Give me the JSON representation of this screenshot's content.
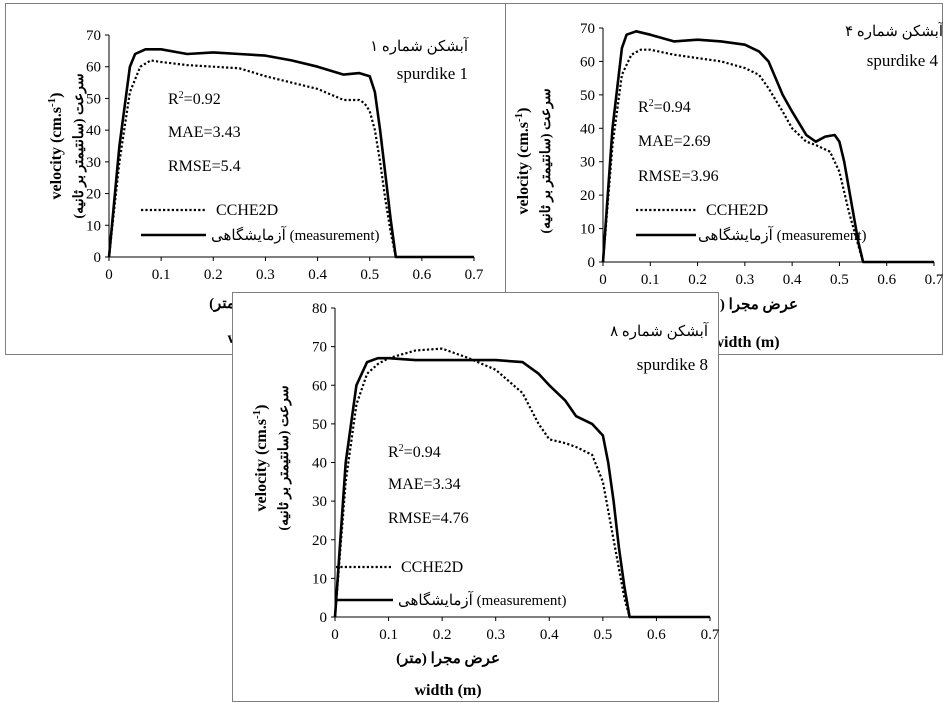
{
  "chart_data": [
    {
      "type": "line",
      "title_fa": "آبشکن شماره ۱",
      "title_en": "spurdike 1",
      "ylabel_en": "velocity (cm.s",
      "ylabel_sup": "-1",
      "ylabel_en_close": ")",
      "ylabel_fa": "سرعت (سانتیمتر بر ثانیه)",
      "xlabel_fa": "عرض مجرا (متر)",
      "xlabel_en": "width (m)",
      "xlim": [
        0,
        0.7
      ],
      "ylim": [
        0,
        70
      ],
      "xticks": [
        "0",
        "0.1",
        "0.2",
        "0.3",
        "0.4",
        "0.5",
        "0.6",
        "0.7"
      ],
      "yticks": [
        "0",
        "10",
        "20",
        "30",
        "40",
        "50",
        "60",
        "70"
      ],
      "stats": {
        "r2_prefix": "R",
        "r2_sup": "2",
        "r2_value": "=0.92",
        "mae": "MAE=3.43",
        "rmse": "RMSE=5.4"
      },
      "legend": {
        "cche": "CCHE2D",
        "meas_fa": "آزمایشگاهی",
        "meas_en": "(measurement)"
      },
      "series": [
        {
          "name": "CCHE2D",
          "style": "dotted",
          "x": [
            0,
            0.02,
            0.04,
            0.06,
            0.08,
            0.1,
            0.15,
            0.2,
            0.25,
            0.3,
            0.35,
            0.4,
            0.45,
            0.48,
            0.49,
            0.5,
            0.51,
            0.52,
            0.53,
            0.54,
            0.55
          ],
          "y": [
            0,
            30,
            52,
            60,
            62,
            61.5,
            60.5,
            60,
            59.5,
            57,
            55,
            53,
            49.5,
            49.5,
            48.5,
            46,
            40,
            30,
            18,
            8,
            0
          ]
        },
        {
          "name": "measurement",
          "style": "solid",
          "x": [
            0,
            0.02,
            0.04,
            0.05,
            0.07,
            0.1,
            0.15,
            0.2,
            0.25,
            0.3,
            0.35,
            0.4,
            0.45,
            0.48,
            0.5,
            0.51,
            0.52,
            0.53,
            0.54,
            0.55,
            0.6,
            0.7
          ],
          "y": [
            0,
            35,
            60,
            64,
            65.5,
            65.5,
            64,
            64.5,
            64,
            63.5,
            62,
            60,
            57.5,
            58,
            57,
            52,
            40,
            26,
            12,
            0,
            0,
            0
          ]
        }
      ]
    },
    {
      "type": "line",
      "title_fa": "آبشکن شماره ۴",
      "title_en": "spurdike 4",
      "ylabel_en": "velocity (cm.s",
      "ylabel_sup": "-1",
      "ylabel_en_close": ")",
      "ylabel_fa": "سرعت (سانتیمتر بر ثانیه)",
      "xlabel_fa": "عرض مجرا (متر)",
      "xlabel_en": "width (m)",
      "xlim": [
        0,
        0.7
      ],
      "ylim": [
        0,
        70
      ],
      "xticks": [
        "0",
        "0.1",
        "0.2",
        "0.3",
        "0.4",
        "0.5",
        "0.6",
        "0.7"
      ],
      "yticks": [
        "0",
        "10",
        "20",
        "30",
        "40",
        "50",
        "60",
        "70"
      ],
      "stats": {
        "r2_prefix": "R",
        "r2_sup": "2",
        "r2_value": "=0.94",
        "mae": "MAE=2.69",
        "rmse": "RMSE=3.96"
      },
      "legend": {
        "cche": "CCHE2D",
        "meas_fa": "آزمایشگاهی",
        "meas_en": "(measurement)"
      },
      "series": [
        {
          "name": "CCHE2D",
          "style": "dotted",
          "x": [
            0,
            0.02,
            0.04,
            0.06,
            0.08,
            0.1,
            0.15,
            0.2,
            0.25,
            0.3,
            0.33,
            0.35,
            0.38,
            0.4,
            0.43,
            0.45,
            0.48,
            0.5,
            0.52,
            0.54,
            0.55
          ],
          "y": [
            0,
            35,
            56,
            62,
            63.5,
            63.5,
            62,
            61,
            60,
            58,
            56,
            52,
            45,
            40,
            36,
            35,
            33,
            27,
            15,
            5,
            0
          ]
        },
        {
          "name": "measurement",
          "style": "solid",
          "x": [
            0,
            0.02,
            0.04,
            0.05,
            0.07,
            0.1,
            0.15,
            0.2,
            0.25,
            0.3,
            0.33,
            0.35,
            0.38,
            0.4,
            0.43,
            0.45,
            0.47,
            0.49,
            0.5,
            0.51,
            0.52,
            0.53,
            0.54,
            0.55,
            0.6,
            0.7
          ],
          "y": [
            0,
            40,
            64,
            68,
            69,
            68,
            66,
            66.5,
            66,
            65,
            63,
            60,
            50,
            45,
            38,
            36,
            37.5,
            38,
            36,
            30,
            22,
            14,
            6,
            0,
            0,
            0
          ]
        }
      ]
    },
    {
      "type": "line",
      "title_fa": "آبشکن شماره ۸",
      "title_en": "spurdike 8",
      "ylabel_en": "velocity (cm.s",
      "ylabel_sup": "-1",
      "ylabel_en_close": ")",
      "ylabel_fa": "سرعت (سانتیمتر بر ثانیه)",
      "xlabel_fa": "عرض مجرا (متر)",
      "xlabel_en": "width (m)",
      "xlim": [
        0,
        0.7
      ],
      "ylim": [
        0,
        80
      ],
      "xticks": [
        "0",
        "0.1",
        "0.2",
        "0.3",
        "0.4",
        "0.5",
        "0.6",
        "0.7"
      ],
      "yticks": [
        "0",
        "10",
        "20",
        "30",
        "40",
        "50",
        "60",
        "70",
        "80"
      ],
      "stats": {
        "r2_prefix": "R",
        "r2_sup": "2",
        "r2_value": "=0.94",
        "mae": "MAE=3.34",
        "rmse": "RMSE=4.76"
      },
      "legend": {
        "cche": "CCHE2D",
        "meas_fa": "آزمایشگاهی",
        "meas_en": "(measurement)"
      },
      "series": [
        {
          "name": "CCHE2D",
          "style": "dotted",
          "x": [
            0,
            0.02,
            0.04,
            0.06,
            0.08,
            0.1,
            0.15,
            0.2,
            0.25,
            0.3,
            0.35,
            0.38,
            0.4,
            0.43,
            0.45,
            0.48,
            0.5,
            0.52,
            0.54,
            0.55
          ],
          "y": [
            0,
            35,
            55,
            63,
            65.5,
            67,
            69,
            69.5,
            67,
            64,
            58,
            50,
            46,
            45,
            44,
            42,
            35,
            20,
            5,
            0
          ]
        },
        {
          "name": "measurement",
          "style": "solid",
          "x": [
            0,
            0.02,
            0.04,
            0.06,
            0.08,
            0.1,
            0.15,
            0.2,
            0.25,
            0.3,
            0.35,
            0.38,
            0.4,
            0.43,
            0.45,
            0.48,
            0.5,
            0.51,
            0.52,
            0.53,
            0.54,
            0.55,
            0.6,
            0.7
          ],
          "y": [
            0,
            40,
            60,
            66,
            67,
            67,
            66.5,
            66.5,
            66.5,
            66.5,
            66,
            63,
            60,
            56,
            52,
            50,
            47,
            40,
            30,
            18,
            8,
            0,
            0,
            0
          ]
        }
      ]
    }
  ]
}
